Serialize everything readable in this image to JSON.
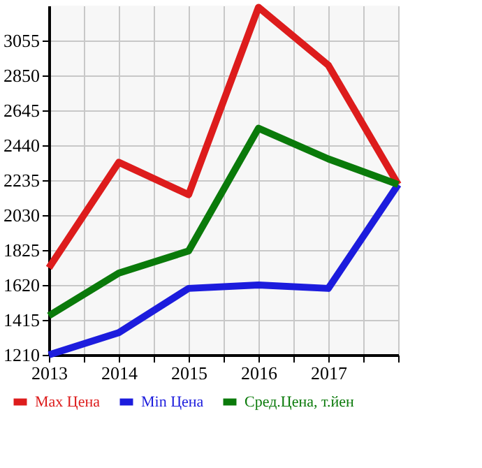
{
  "chart_data": {
    "type": "line",
    "x": [
      2013,
      2014,
      2015,
      2016,
      2017,
      2018
    ],
    "series": [
      {
        "name": "Max Цена",
        "color": "#dd1c1c",
        "values": [
          1720,
          2340,
          2150,
          3250,
          2910,
          2210
        ]
      },
      {
        "name": "Min Цена",
        "color": "#1c1cdd",
        "values": [
          1210,
          1340,
          1600,
          1620,
          1600,
          2210
        ]
      },
      {
        "name": "Сред.Цена, т.йен",
        "color": "#0a7a0a",
        "values": [
          1440,
          1690,
          1820,
          2540,
          2360,
          2210
        ]
      }
    ],
    "xlim": [
      2013,
      2018
    ],
    "xticks": [
      2013,
      {
        "value": 2013.5,
        "label": null
      },
      2014,
      {
        "value": 2014.5,
        "label": null
      },
      2015,
      {
        "value": 2015.5,
        "label": null
      },
      2016,
      {
        "value": 2016.5,
        "label": null
      },
      2017,
      {
        "value": 2017.5,
        "label": null
      },
      {
        "value": 2018,
        "label": null
      }
    ],
    "ylim": [
      1210,
      3260
    ],
    "yticks": [
      1210,
      1415,
      1620,
      1825,
      2030,
      2235,
      2440,
      2645,
      2850,
      3055
    ],
    "grid": true,
    "legend": "bottom",
    "marker": "none",
    "line_style": "solid"
  }
}
